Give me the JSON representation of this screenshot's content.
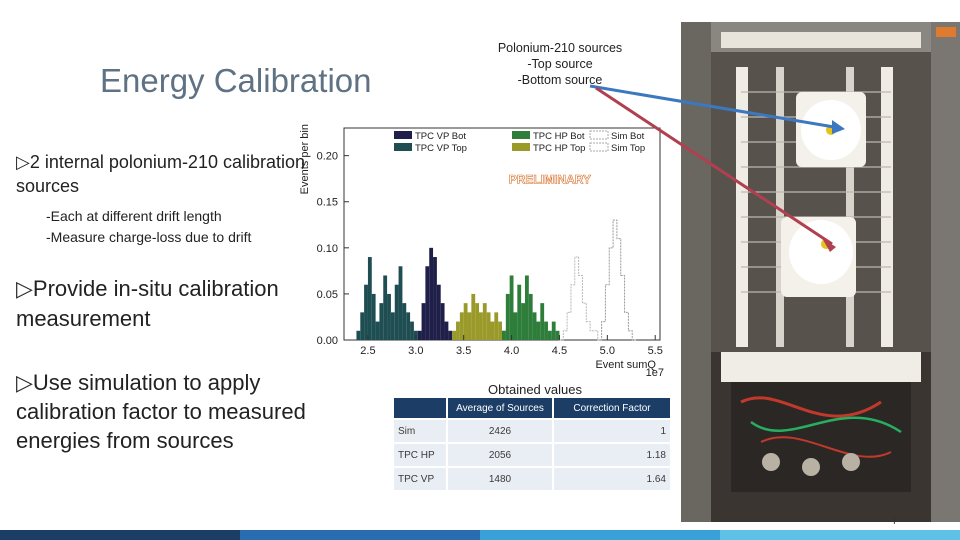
{
  "slide": {
    "title": "Energy Calibration",
    "bullets": [
      {
        "marker": "▷",
        "text": "2 internal polonium-210 calibration sources"
      },
      {
        "marker": "▷",
        "text": "Provide in-situ calibration measurement"
      },
      {
        "marker": "▷",
        "text": "Use simulation to apply calibration factor to measured energies from sources"
      }
    ],
    "sub_points": [
      "-Each at different drift length",
      "-Measure charge-loss due to drift"
    ],
    "callout": {
      "line1": "Polonium-210 sources",
      "line2": "-Top source",
      "line3": "-Bottom source"
    },
    "obtained_label": "Obtained values",
    "page_number": "7",
    "colors": {
      "title": "#5f7283",
      "table_header": "#1c3e66",
      "table_cell": "#e9eef4",
      "arrow_blue": "#3b78c0",
      "arrow_red": "#b04050"
    }
  },
  "results_table": {
    "headers": [
      "",
      "Average of Sources",
      "Correction Factor"
    ],
    "rows": [
      [
        "Sim",
        "2426",
        "1"
      ],
      [
        "TPC HP",
        "2056",
        "1.18"
      ],
      [
        "TPC VP",
        "1480",
        "1.64"
      ]
    ]
  },
  "chart_data": {
    "type": "histogram",
    "title": "",
    "ylabel": "Events per bin",
    "xlabel": "Event sumQ",
    "x_exponent_label": "1e7",
    "annotation": "PRELIMINARY",
    "xlim": [
      2.25,
      5.55
    ],
    "ylim": [
      0,
      0.23
    ],
    "x_ticks": [
      "2.5",
      "3.0",
      "3.5",
      "4.0",
      "4.5",
      "5.0",
      "5.5"
    ],
    "x_tick_values": [
      2.5,
      3.0,
      3.5,
      4.0,
      4.5,
      5.0,
      5.5
    ],
    "y_ticks": [
      "0.00",
      "0.05",
      "0.10",
      "0.15",
      "0.20"
    ],
    "y_tick_values": [
      0,
      0.05,
      0.1,
      0.15,
      0.2
    ],
    "legend": [
      "TPC VP Bot",
      "TPC VP Top",
      "TPC HP Bot",
      "TPC HP Top",
      "Sim Bot",
      "Sim Top"
    ],
    "series": [
      {
        "name": "TPC VP Top",
        "color": "#1e4e52",
        "style": "fill",
        "x": [
          2.38,
          2.42,
          2.46,
          2.5,
          2.54,
          2.58,
          2.62,
          2.66,
          2.7,
          2.74,
          2.78,
          2.82,
          2.86,
          2.9,
          2.94,
          2.98,
          3.02
        ],
        "y": [
          0.01,
          0.03,
          0.06,
          0.09,
          0.05,
          0.02,
          0.04,
          0.07,
          0.05,
          0.03,
          0.06,
          0.08,
          0.04,
          0.03,
          0.02,
          0.01,
          0.0
        ]
      },
      {
        "name": "TPC VP Bot",
        "color": "#1f1f4a",
        "style": "fill",
        "x": [
          3.02,
          3.06,
          3.1,
          3.14,
          3.18,
          3.22,
          3.26,
          3.3,
          3.34,
          3.38
        ],
        "y": [
          0.01,
          0.04,
          0.08,
          0.1,
          0.09,
          0.06,
          0.04,
          0.02,
          0.01,
          0.0
        ]
      },
      {
        "name": "TPC HP Top",
        "color": "#9a9a2a",
        "style": "fill",
        "x": [
          3.38,
          3.42,
          3.46,
          3.5,
          3.54,
          3.58,
          3.62,
          3.66,
          3.7,
          3.74,
          3.78,
          3.82,
          3.86,
          3.9
        ],
        "y": [
          0.01,
          0.02,
          0.03,
          0.04,
          0.03,
          0.05,
          0.04,
          0.03,
          0.04,
          0.03,
          0.02,
          0.03,
          0.02,
          0.01
        ]
      },
      {
        "name": "TPC HP Bot",
        "color": "#2e7d3a",
        "style": "fill",
        "x": [
          3.9,
          3.94,
          3.98,
          4.02,
          4.06,
          4.1,
          4.14,
          4.18,
          4.22,
          4.26,
          4.3,
          4.34,
          4.38,
          4.42,
          4.46,
          4.5
        ],
        "y": [
          0.01,
          0.05,
          0.07,
          0.03,
          0.06,
          0.04,
          0.07,
          0.05,
          0.03,
          0.02,
          0.04,
          0.02,
          0.01,
          0.02,
          0.01,
          0.0
        ]
      },
      {
        "name": "Sim Top",
        "color": "#b8b8b8",
        "style": "line",
        "x": [
          4.5,
          4.54,
          4.58,
          4.62,
          4.66,
          4.7,
          4.74,
          4.78,
          4.82,
          4.86,
          4.9
        ],
        "y": [
          0.0,
          0.01,
          0.03,
          0.06,
          0.09,
          0.07,
          0.04,
          0.02,
          0.01,
          0.01,
          0.0
        ]
      },
      {
        "name": "Sim Bot",
        "color": "#9a9a9a",
        "style": "line",
        "x": [
          4.9,
          4.94,
          4.98,
          5.02,
          5.06,
          5.1,
          5.14,
          5.18,
          5.22,
          5.26
        ],
        "y": [
          0.0,
          0.02,
          0.06,
          0.1,
          0.13,
          0.11,
          0.07,
          0.03,
          0.01,
          0.0
        ]
      }
    ]
  }
}
